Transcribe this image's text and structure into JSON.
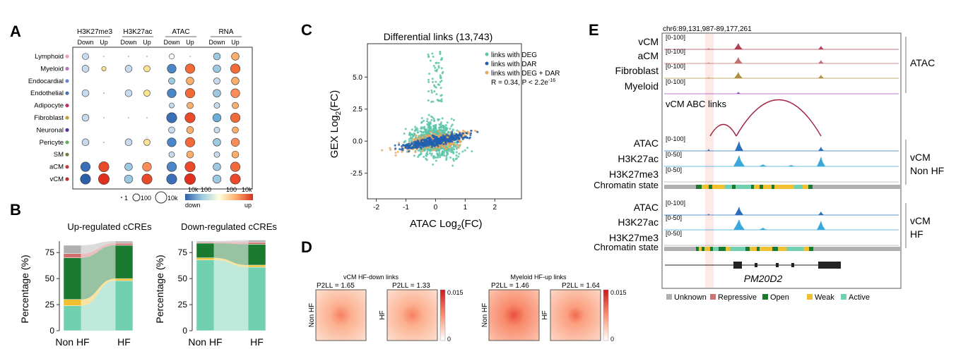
{
  "panels": {
    "A": "A",
    "B": "B",
    "C": "C",
    "D": "D",
    "E": "E"
  },
  "panelA": {
    "groups": [
      "H3K27me3",
      "H3K27ac",
      "ATAC",
      "RNA"
    ],
    "subcols": [
      "Down",
      "Up"
    ],
    "rows": [
      "Lymphoid",
      "Myeloid",
      "Endocardial",
      "Endothelial",
      "Adipocyte",
      "Fibroblast",
      "Neuronal",
      "Pericyte",
      "SM",
      "aCM",
      "vCM"
    ],
    "row_colors": [
      "#e8a0c8",
      "#c070c0",
      "#6a8ad0",
      "#4a70b0",
      "#c03070",
      "#c0a040",
      "#6030a0",
      "#60b060",
      "#708040",
      "#c04040",
      "#c03030"
    ],
    "size_legend": [
      "1",
      "100",
      "10k"
    ],
    "color_legend": {
      "left_top": "10k",
      "left_mid": "100",
      "right_mid": "100",
      "right_top": "10k",
      "down": "down",
      "up": "up"
    },
    "cells": [
      [
        [
          0.5,
          0.15,
          "#c6dbef"
        ],
        [
          0.1,
          0.1,
          "#999"
        ],
        [
          0.1,
          0.1,
          "#999"
        ],
        [
          0.1,
          0.1,
          "#999"
        ],
        [
          0.4,
          0.25,
          "#fff"
        ],
        [
          0.1,
          0.1,
          "#999"
        ],
        [
          0.55,
          0.4,
          "#9ecae1"
        ],
        [
          0.6,
          0.45,
          "#fdae6b"
        ]
      ],
      [
        [
          0.55,
          0.25,
          "#c6dbef"
        ],
        [
          0.35,
          0.2,
          "#fee391"
        ],
        [
          0.55,
          0.25,
          "#c6dbef"
        ],
        [
          0.5,
          0.25,
          "#fee391"
        ],
        [
          0.7,
          0.6,
          "#4a86c8"
        ],
        [
          0.75,
          0.75,
          "#f16a3a"
        ],
        [
          0.6,
          0.45,
          "#9ecae1"
        ],
        [
          0.75,
          0.75,
          "#f16a3a"
        ]
      ],
      [
        [
          0,
          0,
          "#fff"
        ],
        [
          0,
          0,
          "#fff"
        ],
        [
          0,
          0,
          "#fff"
        ],
        [
          0,
          0,
          "#fff"
        ],
        [
          0.5,
          0.3,
          "#9ecae1"
        ],
        [
          0.6,
          0.4,
          "#fdae6b"
        ],
        [
          0.5,
          0.3,
          "#c6dbef"
        ],
        [
          0.6,
          0.4,
          "#fdae6b"
        ]
      ],
      [
        [
          0.55,
          0.25,
          "#c6dbef"
        ],
        [
          0.1,
          0.1,
          "#999"
        ],
        [
          0.55,
          0.25,
          "#c6dbef"
        ],
        [
          0.5,
          0.25,
          "#fee391"
        ],
        [
          0.7,
          0.6,
          "#4a86c8"
        ],
        [
          0.75,
          0.75,
          "#f16a3a"
        ],
        [
          0.6,
          0.45,
          "#9ecae1"
        ],
        [
          0.7,
          0.6,
          "#fc8d59"
        ]
      ],
      [
        [
          0,
          0,
          "#fff"
        ],
        [
          0,
          0,
          "#fff"
        ],
        [
          0,
          0,
          "#fff"
        ],
        [
          0,
          0,
          "#fff"
        ],
        [
          0.4,
          0.25,
          "#c6dbef"
        ],
        [
          0.5,
          0.3,
          "#fdae6b"
        ],
        [
          0.45,
          0.3,
          "#c6dbef"
        ],
        [
          0.5,
          0.3,
          "#fdae6b"
        ]
      ],
      [
        [
          0.55,
          0.25,
          "#c6dbef"
        ],
        [
          0.1,
          0.1,
          "#999"
        ],
        [
          0.1,
          0.1,
          "#999"
        ],
        [
          0.1,
          0.1,
          "#999"
        ],
        [
          0.8,
          0.75,
          "#3a6fb8"
        ],
        [
          0.8,
          0.8,
          "#e84a2a"
        ],
        [
          0.65,
          0.5,
          "#6aaed6"
        ],
        [
          0.75,
          0.75,
          "#f16a3a"
        ]
      ],
      [
        [
          0,
          0,
          "#fff"
        ],
        [
          0,
          0,
          "#fff"
        ],
        [
          0,
          0,
          "#fff"
        ],
        [
          0,
          0,
          "#fff"
        ],
        [
          0.5,
          0.3,
          "#c6dbef"
        ],
        [
          0.55,
          0.35,
          "#fdae6b"
        ],
        [
          0.45,
          0.3,
          "#c6dbef"
        ],
        [
          0.5,
          0.3,
          "#fdae6b"
        ]
      ],
      [
        [
          0.55,
          0.25,
          "#c6dbef"
        ],
        [
          0.1,
          0.1,
          "#999"
        ],
        [
          0.55,
          0.25,
          "#c6dbef"
        ],
        [
          0.5,
          0.25,
          "#fee391"
        ],
        [
          0.7,
          0.6,
          "#4a86c8"
        ],
        [
          0.75,
          0.75,
          "#f16a3a"
        ],
        [
          0.6,
          0.45,
          "#9ecae1"
        ],
        [
          0.65,
          0.6,
          "#fc8d59"
        ]
      ],
      [
        [
          0,
          0,
          "#fff"
        ],
        [
          0,
          0,
          "#fff"
        ],
        [
          0,
          0,
          "#fff"
        ],
        [
          0,
          0,
          "#fff"
        ],
        [
          0.45,
          0.3,
          "#c6dbef"
        ],
        [
          0.55,
          0.35,
          "#fdae6b"
        ],
        [
          0.45,
          0.3,
          "#c6dbef"
        ],
        [
          0.55,
          0.35,
          "#fdae6b"
        ]
      ],
      [
        [
          0.75,
          0.8,
          "#3a6fb8"
        ],
        [
          0.8,
          0.8,
          "#e84a2a"
        ],
        [
          0.6,
          0.4,
          "#9ecae1"
        ],
        [
          0.7,
          0.6,
          "#fc8d59"
        ],
        [
          0.75,
          0.6,
          "#4a86c8"
        ],
        [
          0.8,
          0.8,
          "#e84a2a"
        ],
        [
          0.6,
          0.45,
          "#9ecae1"
        ],
        [
          0.75,
          0.75,
          "#f16a3a"
        ]
      ],
      [
        [
          0.8,
          0.85,
          "#2c5fa8"
        ],
        [
          0.85,
          0.9,
          "#e03020"
        ],
        [
          0.65,
          0.45,
          "#9ecae1"
        ],
        [
          0.8,
          0.85,
          "#e84a2a"
        ],
        [
          0.8,
          0.7,
          "#3a6fb8"
        ],
        [
          0.85,
          0.85,
          "#e03020"
        ],
        [
          0.65,
          0.5,
          "#9ecae1"
        ],
        [
          0.8,
          0.85,
          "#e84a2a"
        ]
      ]
    ]
  },
  "panelB": {
    "titles": [
      "Up-regulated cCREs",
      "Down-regulated cCREs"
    ],
    "ylabel": "Percentage (%)",
    "yticks": [
      "0",
      "25",
      "50",
      "75"
    ],
    "xlabels": [
      "Non HF",
      "HF"
    ],
    "categories": [
      "Active",
      "Weak",
      "Open",
      "Repressive",
      "Unknown"
    ],
    "up": {
      "NonHF": [
        24,
        6,
        40,
        4,
        8
      ],
      "HF": [
        48,
        2,
        32,
        2,
        2
      ]
    },
    "down": {
      "NonHF": [
        68,
        2,
        14,
        1,
        1
      ],
      "HF": [
        61,
        2,
        20,
        2,
        2
      ]
    }
  },
  "panelC": {
    "title": "Differential links (13,743)",
    "xlabel": "ATAC Log2(FC)",
    "xlabel_base": "ATAC Log",
    "xlabel_sub": "2",
    "xlabel_tail": "(FC)",
    "ylabel": "GEX Log2(FC)",
    "ylabel_base": "GEX Log",
    "ylabel_sub": "2",
    "ylabel_tail": "(FC)",
    "xticks": [
      "-2",
      "-1",
      "0",
      "1",
      "2"
    ],
    "yticks": [
      "-2.5",
      "0.0",
      "2.5",
      "5.0"
    ],
    "legend": [
      "links with DEG",
      "links with DAR",
      "links with DEG + DAR"
    ],
    "stat_text": "R = 0.34, P < 2.2e",
    "stat_exp": "-16",
    "colors": {
      "deg": "#5cc4a8",
      "dar": "#2060b0",
      "both": "#e8a860"
    }
  },
  "panelD": {
    "group_titles": [
      "vCM HF-down links",
      "Myeloid HF-up links"
    ],
    "p2ll": [
      "P2LL = 1.65",
      "P2LL = 1.33",
      "P2LL = 1.46",
      "P2LL = 1.64"
    ],
    "row_labels": [
      "Non HF",
      "HF",
      "Non HF",
      "HF"
    ],
    "colorbar_max": "0.015",
    "colorbar_min": "0"
  },
  "panelE": {
    "coordinate": "chr6:89,131,987-89,177,261",
    "top_tracks": [
      "vCM",
      "aCM",
      "Fibroblast",
      "Myeloid"
    ],
    "top_ranges": [
      "[0-100]",
      "[0-100]",
      "[0-100]",
      "[0-100]"
    ],
    "top_group": "ATAC",
    "abc_label": "vCM ABC links",
    "nonhf_tracks": [
      "ATAC",
      "H3K27ac",
      "H3K27me3"
    ],
    "nonhf_ranges": [
      "[0-100]",
      "[0-50]",
      "[0-50]"
    ],
    "nonhf_group_line1": "vCM",
    "nonhf_group_line2": "Non HF",
    "chromatin_label": "Chromatin state",
    "hf_tracks": [
      "ATAC",
      "H3K27ac",
      "H3K27me3"
    ],
    "hf_ranges": [
      "[0-100]",
      "[0-50]",
      "[0-50]"
    ],
    "hf_group_line1": "vCM",
    "hf_group_line2": "HF",
    "gene": "PM20D2",
    "legend": [
      "Unknown",
      "Repressive",
      "Open",
      "Weak",
      "Active"
    ],
    "legend_colors": [
      "#b0b0b0",
      "#d07070",
      "#1a7a30",
      "#f0c030",
      "#70d0b0"
    ]
  }
}
